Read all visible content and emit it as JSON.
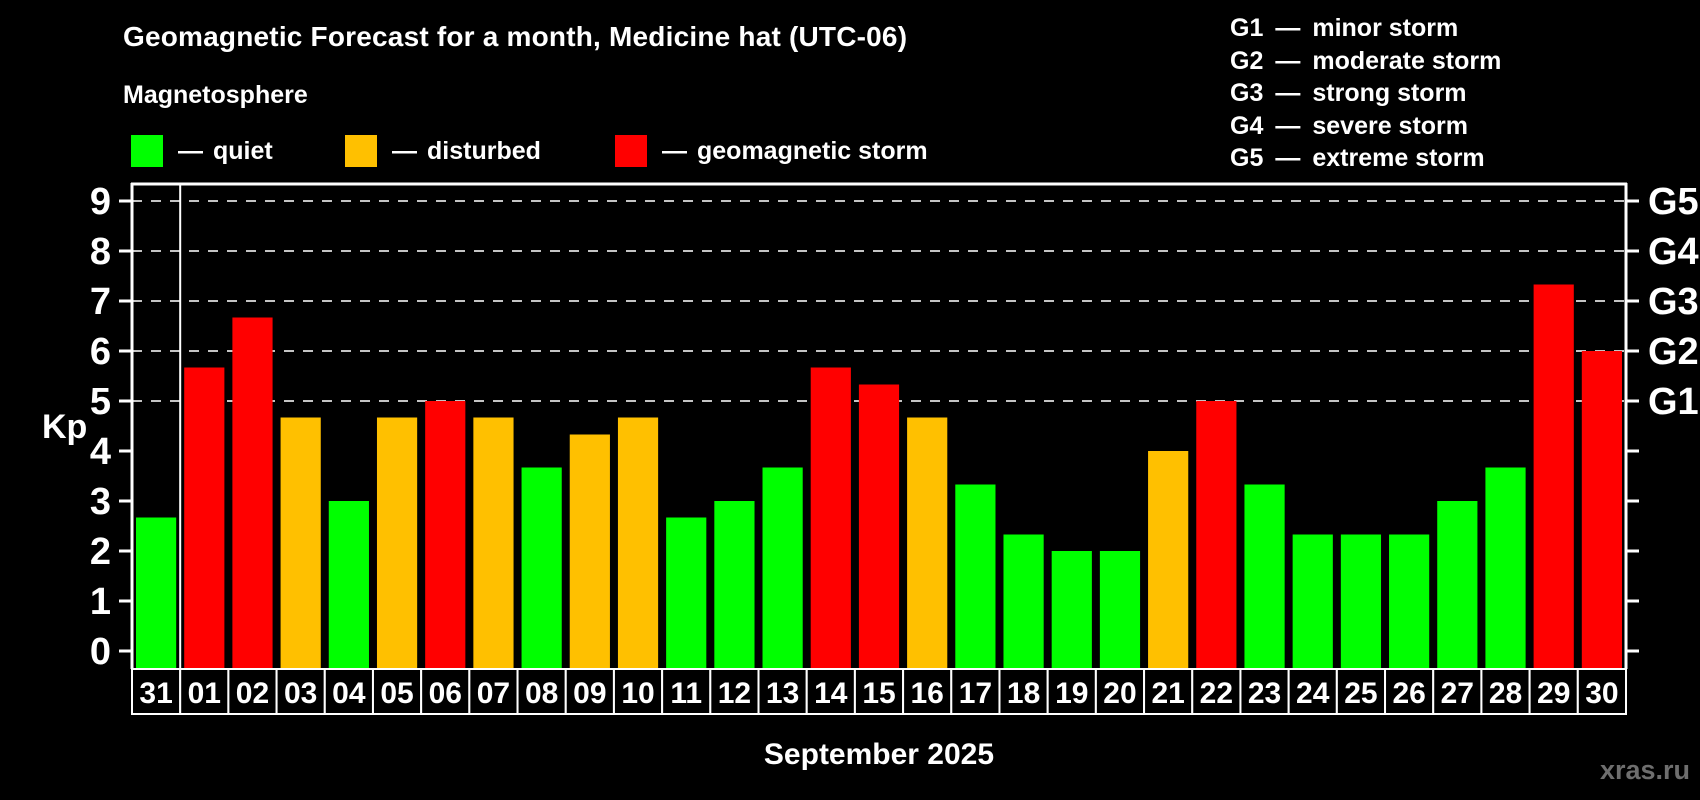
{
  "header": {
    "title": "Geomagnetic Forecast for a month, Medicine hat (UTC-06)",
    "subtitle": "Magnetosphere"
  },
  "footer": {
    "watermark": "xras.ru"
  },
  "chart_data": {
    "type": "bar",
    "title": "Geomagnetic Forecast for a month, Medicine hat (UTC-06)",
    "subtitle": "Magnetosphere",
    "xlabel": "September 2025",
    "ylabel": "Kp",
    "dash": "—",
    "categories": [
      "31",
      "01",
      "02",
      "03",
      "04",
      "05",
      "06",
      "07",
      "08",
      "09",
      "10",
      "11",
      "12",
      "13",
      "14",
      "15",
      "16",
      "17",
      "18",
      "19",
      "20",
      "21",
      "22",
      "23",
      "24",
      "25",
      "26",
      "27",
      "28",
      "29",
      "30"
    ],
    "values": [
      2.67,
      5.67,
      6.67,
      4.67,
      3.0,
      4.67,
      5.0,
      4.67,
      3.67,
      4.33,
      4.67,
      2.67,
      3.0,
      3.67,
      5.67,
      5.33,
      4.67,
      3.33,
      2.33,
      2.0,
      2.0,
      4.0,
      5.0,
      3.33,
      2.33,
      2.33,
      2.33,
      3.0,
      3.67,
      7.33,
      6.0
    ],
    "statuses": [
      "quiet",
      "storm",
      "storm",
      "disturbed",
      "quiet",
      "disturbed",
      "storm",
      "disturbed",
      "quiet",
      "disturbed",
      "disturbed",
      "quiet",
      "quiet",
      "quiet",
      "storm",
      "storm",
      "disturbed",
      "quiet",
      "quiet",
      "quiet",
      "quiet",
      "disturbed",
      "storm",
      "quiet",
      "quiet",
      "quiet",
      "quiet",
      "quiet",
      "quiet",
      "storm",
      "storm"
    ],
    "colors": {
      "quiet": "#00ff00",
      "disturbed": "#ffc000",
      "storm": "#ff0000"
    },
    "yticks": [
      0,
      1,
      2,
      3,
      4,
      5,
      6,
      7,
      8,
      9
    ],
    "ylim": [
      -0.36,
      9.34
    ],
    "grid_kp": [
      5,
      6,
      7,
      8,
      9
    ],
    "grid_style": "dashed",
    "legend_position": "top-left",
    "month_separator_after_index": 0,
    "legend": [
      {
        "label": "quiet",
        "color": "#00ff00"
      },
      {
        "label": "disturbed",
        "color": "#ffc000"
      },
      {
        "label": "geomagnetic storm",
        "color": "#ff0000"
      }
    ],
    "g_levels": [
      {
        "code": "G1",
        "kp": 5,
        "desc": "minor storm"
      },
      {
        "code": "G2",
        "kp": 6,
        "desc": "moderate storm"
      },
      {
        "code": "G3",
        "kp": 7,
        "desc": "strong storm"
      },
      {
        "code": "G4",
        "kp": 8,
        "desc": "severe storm"
      },
      {
        "code": "G5",
        "kp": 9,
        "desc": "extreme storm"
      }
    ]
  }
}
